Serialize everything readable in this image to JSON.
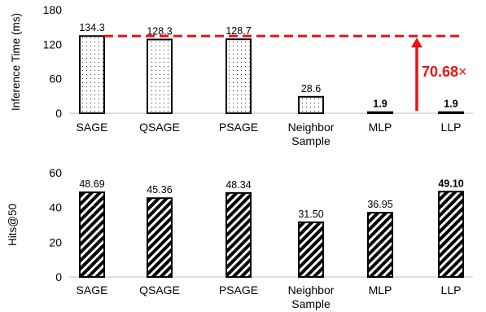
{
  "chart_data": [
    {
      "type": "bar",
      "ylabel": "Inference Time (ms)",
      "ylim": [
        0,
        180
      ],
      "yticks": [
        0,
        60,
        120,
        180
      ],
      "categories": [
        [
          "SAGE"
        ],
        [
          "QSAGE"
        ],
        [
          "PSAGE"
        ],
        [
          "Neighbor",
          "Sample"
        ],
        [
          "MLP"
        ],
        [
          "LLP"
        ]
      ],
      "values": [
        134.3,
        128.3,
        128.7,
        28.6,
        1.9,
        1.9
      ],
      "data_labels": [
        "134.3",
        "128.3",
        "128.7",
        "28.6",
        "1.9",
        "1.9"
      ],
      "bold_labels": [
        false,
        false,
        false,
        false,
        true,
        true
      ],
      "bar_pattern": "dots",
      "reference_line": {
        "value": 134.3,
        "color": "#ee1111",
        "style": "dashed"
      },
      "annotation": {
        "text": "70.68",
        "suffix": "×",
        "color": "#ee1111"
      }
    },
    {
      "type": "bar",
      "ylabel": "Hits@50",
      "ylim": [
        0,
        60
      ],
      "yticks": [
        0,
        20,
        40,
        60
      ],
      "categories": [
        [
          "SAGE"
        ],
        [
          "QSAGE"
        ],
        [
          "PSAGE"
        ],
        [
          "Neighbor",
          "Sample"
        ],
        [
          "MLP"
        ],
        [
          "LLP"
        ]
      ],
      "values": [
        48.69,
        45.36,
        48.34,
        31.5,
        36.95,
        49.1
      ],
      "data_labels": [
        "48.69",
        "45.36",
        "48.34",
        "31.50",
        "36.95",
        "49.10"
      ],
      "bold_labels": [
        false,
        false,
        false,
        false,
        false,
        true
      ],
      "bar_pattern": "diagonal-stripes"
    }
  ]
}
